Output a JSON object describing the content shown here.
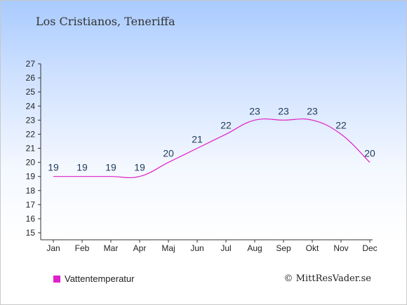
{
  "chart_data": {
    "type": "line",
    "title": "Los Cristianos, Teneriffa",
    "xlabel": "",
    "ylabel": "",
    "categories": [
      "Jan",
      "Feb",
      "Mar",
      "Apr",
      "Maj",
      "Jun",
      "Jul",
      "Aug",
      "Sep",
      "Okt",
      "Nov",
      "Dec"
    ],
    "series": [
      {
        "name": "Vattentemperatur",
        "values": [
          19,
          19,
          19,
          19,
          20,
          21,
          22,
          23,
          23,
          23,
          22,
          20
        ]
      }
    ],
    "ylim": [
      15,
      27
    ],
    "yticks": [
      15,
      16,
      17,
      18,
      19,
      20,
      21,
      22,
      23,
      24,
      25,
      26,
      27
    ],
    "grid": false,
    "legend_placement": "bottom-left",
    "colors": {
      "series": "#e020c8",
      "data_label": "#1f3a5a",
      "axis": "#333333"
    }
  },
  "credit": "© MittResVader.se"
}
